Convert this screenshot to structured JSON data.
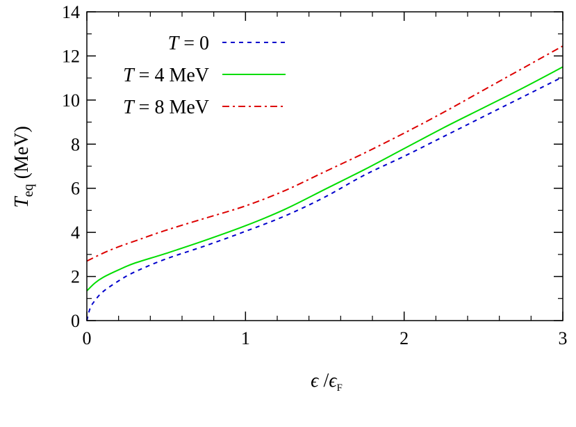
{
  "chart_data": {
    "type": "line",
    "xlabel": {
      "main": "ϵ",
      "sep": " /",
      "sym": "ϵ",
      "sub": "F"
    },
    "ylabel": {
      "sym": "T",
      "sub": "eq",
      "unit": " (MeV)"
    },
    "xlim": [
      0,
      3
    ],
    "ylim": [
      0,
      14
    ],
    "xticks": [
      0,
      1,
      2,
      3
    ],
    "xtick_labels": [
      "0",
      "1",
      "2",
      "3"
    ],
    "yticks": [
      0,
      2,
      4,
      6,
      8,
      10,
      12,
      14
    ],
    "ytick_labels": [
      "0",
      "2",
      "4",
      "6",
      "8",
      "10",
      "12",
      "14"
    ],
    "x_minor_step": 0.2,
    "y_minor_step": 1,
    "grid": false,
    "legend_position": "top-left",
    "series": [
      {
        "name_sym": "T",
        "name_rest": " = 0",
        "color": "#0000cc",
        "style": "dashed",
        "x": [
          0,
          0.02,
          0.05,
          0.1,
          0.2,
          0.3,
          0.5,
          0.75,
          1.0,
          1.25,
          1.5,
          1.75,
          2.0,
          2.25,
          2.5,
          2.75,
          3.0
        ],
        "y": [
          0,
          0.55,
          0.9,
          1.3,
          1.8,
          2.2,
          2.8,
          3.4,
          4.05,
          4.75,
          5.6,
          6.6,
          7.45,
          8.35,
          9.25,
          10.15,
          11.05
        ]
      },
      {
        "name_sym": "T",
        "name_rest": " = 4 MeV",
        "color": "#00dd00",
        "style": "solid",
        "x": [
          0,
          0.05,
          0.1,
          0.2,
          0.3,
          0.5,
          0.75,
          1.0,
          1.25,
          1.5,
          1.75,
          2.0,
          2.25,
          2.5,
          2.75,
          3.0
        ],
        "y": [
          1.35,
          1.7,
          1.95,
          2.3,
          2.6,
          3.05,
          3.65,
          4.3,
          5.05,
          5.95,
          6.85,
          7.8,
          8.75,
          9.65,
          10.55,
          11.5
        ]
      },
      {
        "name_sym": "T",
        "name_rest": " = 8 MeV",
        "color": "#dd0000",
        "style": "dashdot",
        "x": [
          0,
          0.1,
          0.2,
          0.3,
          0.5,
          0.75,
          1.0,
          1.25,
          1.5,
          1.75,
          2.0,
          2.25,
          2.5,
          2.75,
          3.0
        ],
        "y": [
          2.7,
          3.05,
          3.35,
          3.6,
          4.1,
          4.65,
          5.2,
          5.9,
          6.75,
          7.6,
          8.5,
          9.45,
          10.45,
          11.45,
          12.45
        ]
      }
    ]
  }
}
